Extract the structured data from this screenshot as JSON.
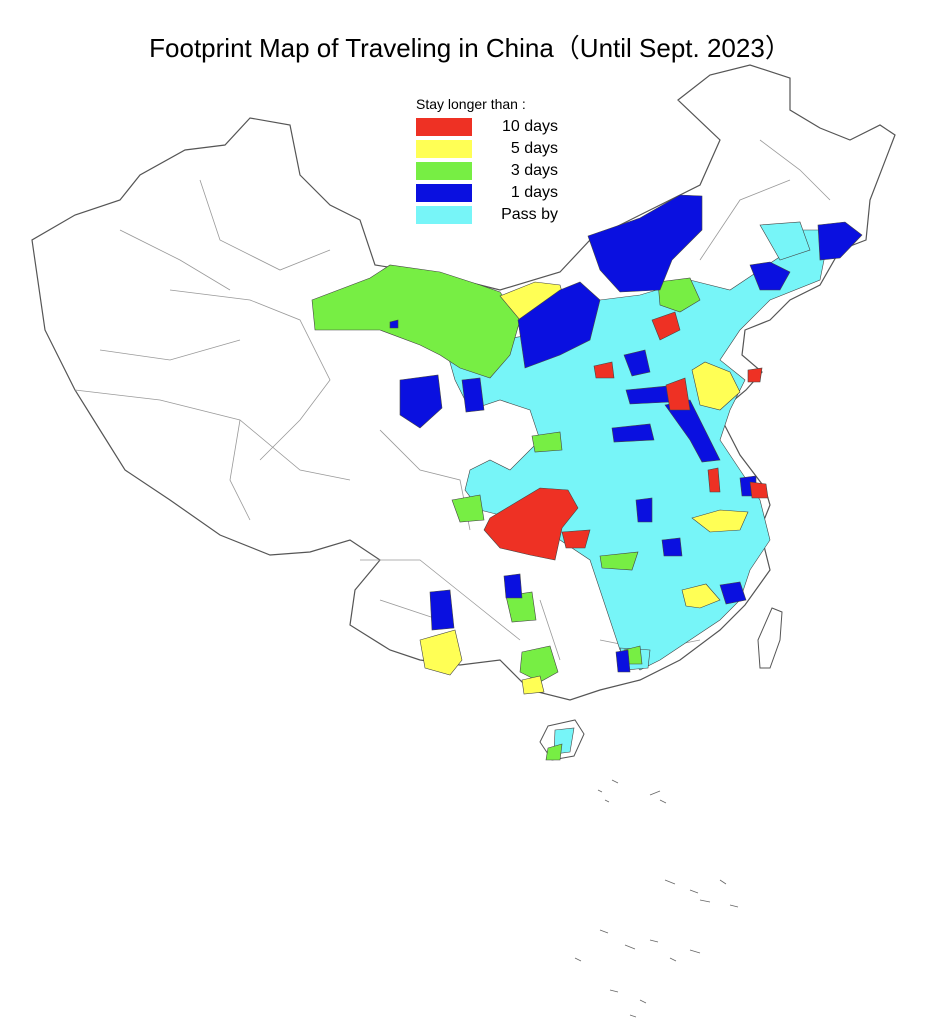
{
  "title": "Footprint Map of Traveling in China（Until Sept. 2023）",
  "legend": {
    "heading": "Stay longer than :",
    "items": [
      {
        "label": "10 days",
        "color": "#ee3124"
      },
      {
        "label": "5 days",
        "color": "#ffff55"
      },
      {
        "label": "3 days",
        "color": "#77ee44"
      },
      {
        "label": "1 days",
        "color": "#0a10e0"
      },
      {
        "label": "Pass by",
        "color": "#77f5f8"
      }
    ]
  },
  "map": {
    "border_color": "#555555",
    "unvisited_color": "#ffffff"
  }
}
